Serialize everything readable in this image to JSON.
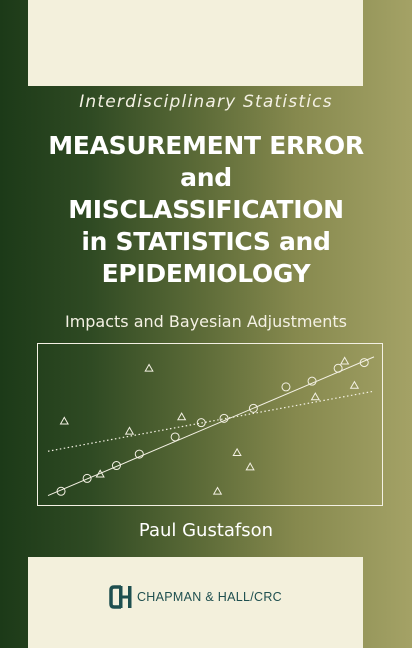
{
  "cover": {
    "series": "Interdisciplinary Statistics",
    "title_lines": [
      "MEASUREMENT ERROR",
      "and",
      "MISCLASSIFICATION",
      "in STATISTICS and",
      "EPIDEMIOLOGY"
    ],
    "subtitle": "Impacts and Bayesian Adjustments",
    "author": "Paul Gustafson",
    "publisher": "CHAPMAN & HALL/CRC",
    "publisher_logo": "ch-logo-icon",
    "colors": {
      "dark_green": "#1c3a18",
      "olive": "#a4a266",
      "cream": "#f3f0dc",
      "publisher_teal": "#1e4f4f"
    }
  },
  "chart_data": {
    "type": "scatter",
    "title": "",
    "xlabel": "",
    "ylabel": "",
    "xlim": [
      0,
      100
    ],
    "ylim": [
      0,
      100
    ],
    "grid": false,
    "legend": "none",
    "series": [
      {
        "marker": "circle",
        "x": [
          4,
          12,
          21,
          28,
          39,
          47,
          54,
          63,
          73,
          81,
          89,
          97
        ],
        "y": [
          4,
          13,
          22,
          30,
          42,
          52,
          55,
          62,
          77,
          81,
          90,
          94
        ]
      },
      {
        "marker": "triangle",
        "x": [
          31,
          5,
          16,
          25,
          41,
          58,
          62,
          82,
          91,
          94,
          52
        ],
        "y": [
          90,
          53,
          16,
          46,
          56,
          31,
          21,
          70,
          95,
          78,
          4
        ]
      }
    ],
    "lines": [
      {
        "style": "solid",
        "points": [
          [
            0,
            1
          ],
          [
            100,
            98
          ]
        ]
      },
      {
        "style": "dotted",
        "points": [
          [
            0,
            32
          ],
          [
            100,
            74
          ]
        ]
      }
    ]
  }
}
